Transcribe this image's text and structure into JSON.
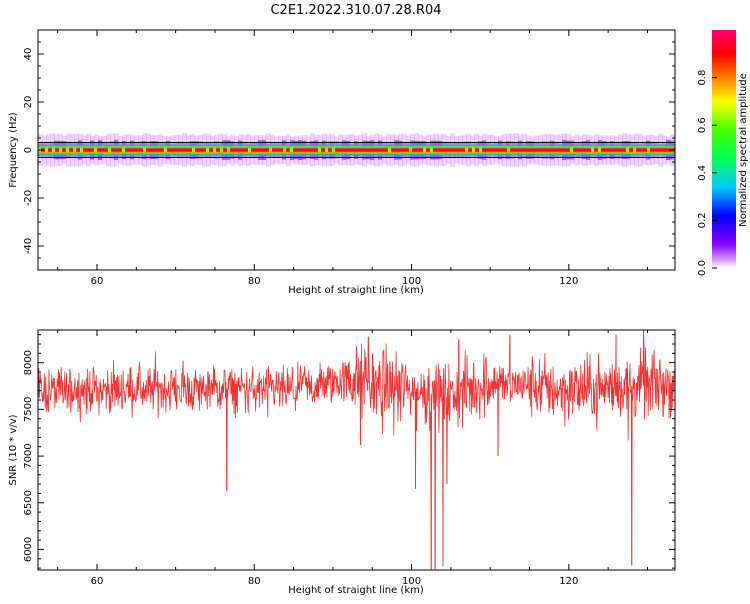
{
  "title": "C2E1.2022.310.07.28.R04",
  "chart_data": [
    {
      "type": "heatmap",
      "xlabel": "Height of straight line (km)",
      "ylabel": "Frequency (Hz)",
      "xlim": [
        52.5,
        133.5
      ],
      "ylim": [
        -50,
        50
      ],
      "xticks": [
        60,
        80,
        100,
        120
      ],
      "yticks": [
        40,
        20,
        0,
        -20,
        -40
      ],
      "ytick_labels": [
        "40",
        "20",
        "0",
        "-20",
        "-40"
      ],
      "colorbar": {
        "label": "Normalized spectral amplitude",
        "ticks": [
          0.0,
          0.2,
          0.4,
          0.6,
          0.8
        ],
        "tick_labels": [
          "0.0",
          "0.2",
          "0.4",
          "0.6",
          "0.8"
        ],
        "range": [
          0,
          1
        ],
        "colormap": "gist_rainbow (violet to red)"
      },
      "description": "Energy concentrated in a narrow band near 0 Hz across all heights (about -3 to +3 Hz), peak amplitude near 0 Hz",
      "band_center_hz": 0,
      "band_halfwidth_hz": 3
    },
    {
      "type": "line",
      "xlabel": "Height of straight line (km)",
      "ylabel": "SNR (10 * v/v)",
      "xlim": [
        52.5,
        133.5
      ],
      "ylim": [
        5780,
        8350
      ],
      "xticks": [
        60,
        80,
        100,
        120
      ],
      "yticks": [
        8000,
        7500,
        7000,
        6500,
        6000
      ],
      "color": "#ee3333",
      "baseline": [
        {
          "x": 52.5,
          "y": 7700
        },
        {
          "x": 70,
          "y": 7720
        },
        {
          "x": 85,
          "y": 7700
        },
        {
          "x": 92,
          "y": 7820
        },
        {
          "x": 100,
          "y": 7700
        },
        {
          "x": 105,
          "y": 7620
        },
        {
          "x": 110,
          "y": 7800
        },
        {
          "x": 120,
          "y": 7700
        },
        {
          "x": 133.5,
          "y": 7780
        }
      ],
      "noise_amplitude": 120,
      "spikes_down": [
        {
          "x": 76.5,
          "y": 6630
        },
        {
          "x": 93.5,
          "y": 7120
        },
        {
          "x": 100.5,
          "y": 6650
        },
        {
          "x": 102.5,
          "y": 5780
        },
        {
          "x": 103.0,
          "y": 5790
        },
        {
          "x": 104.0,
          "y": 5820
        },
        {
          "x": 104.5,
          "y": 6700
        },
        {
          "x": 111.0,
          "y": 7000
        },
        {
          "x": 128.0,
          "y": 5830
        },
        {
          "x": 132.0,
          "y": 7420
        }
      ],
      "spikes_up": [
        {
          "x": 94.5,
          "y": 8280
        },
        {
          "x": 106.0,
          "y": 8250
        },
        {
          "x": 112.5,
          "y": 8300
        },
        {
          "x": 126.0,
          "y": 8300
        },
        {
          "x": 129.5,
          "y": 8350
        }
      ]
    }
  ]
}
